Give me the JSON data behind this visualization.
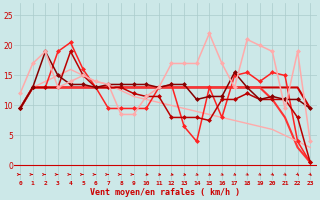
{
  "xlabel": "Vent moyen/en rafales ( km/h )",
  "background_color": "#cce8e8",
  "grid_color": "#aacccc",
  "xlim": [
    -0.5,
    23.5
  ],
  "ylim": [
    -2.5,
    27
  ],
  "yticks": [
    0,
    5,
    10,
    15,
    20,
    25
  ],
  "x_ticks": [
    0,
    1,
    2,
    3,
    4,
    5,
    6,
    7,
    8,
    9,
    10,
    11,
    12,
    13,
    14,
    15,
    16,
    17,
    18,
    19,
    20,
    21,
    22,
    23
  ],
  "lines": [
    {
      "x": [
        0,
        1,
        2,
        3,
        4,
        5,
        6,
        7,
        8,
        9,
        10,
        11,
        12,
        13,
        14,
        15,
        16,
        17,
        18,
        19,
        20,
        21,
        22,
        23
      ],
      "y": [
        9.5,
        13,
        13,
        13,
        13,
        13,
        13,
        13,
        13,
        13,
        13,
        13,
        13,
        13,
        13,
        13,
        13,
        13,
        13,
        13,
        13,
        13,
        13,
        9.5
      ],
      "color": "#cc0000",
      "lw": 1.5,
      "marker": false
    },
    {
      "x": [
        0,
        1,
        2,
        3,
        4,
        5,
        6,
        7,
        8,
        9,
        10,
        11,
        12,
        13,
        14,
        15,
        16,
        17,
        18,
        19,
        20,
        21,
        22,
        23
      ],
      "y": [
        9.5,
        13,
        13,
        13,
        13,
        13,
        13,
        13,
        13,
        13,
        13,
        13,
        13,
        13,
        13,
        13,
        13,
        13,
        13,
        13,
        11,
        8,
        3,
        0.5
      ],
      "color": "#ff3333",
      "lw": 1.5,
      "marker": false
    },
    {
      "x": [
        0,
        1,
        2,
        3,
        4,
        5,
        6,
        7,
        8,
        9,
        10,
        11,
        12,
        13,
        14,
        15,
        16,
        17,
        18,
        19,
        20,
        21,
        22,
        23
      ],
      "y": [
        9.5,
        13,
        14,
        15,
        16,
        15,
        14,
        13.5,
        12.5,
        11.5,
        11,
        10.5,
        10,
        9.5,
        9,
        8.5,
        8,
        7.5,
        7,
        6.5,
        6,
        5,
        4,
        3
      ],
      "color": "#ffaaaa",
      "lw": 1.0,
      "marker": false
    },
    {
      "x": [
        0,
        1,
        2,
        3,
        4,
        5,
        6,
        7,
        8,
        9,
        10,
        11,
        12,
        13,
        14,
        15,
        16,
        17,
        18,
        19,
        20,
        21,
        22,
        23
      ],
      "y": [
        9.5,
        13,
        13,
        19,
        20.5,
        16,
        13,
        9.5,
        9.5,
        9.5,
        9.5,
        13,
        13.5,
        6.5,
        4,
        13,
        8,
        15,
        15.5,
        14,
        15.5,
        15,
        4,
        0.5
      ],
      "color": "#ff2222",
      "lw": 1.1,
      "marker": "D",
      "ms": 2.5
    },
    {
      "x": [
        0,
        1,
        2,
        3,
        4,
        5,
        6,
        7,
        8,
        9,
        10,
        11,
        12,
        13,
        14,
        15,
        16,
        17,
        18,
        19,
        20,
        21,
        22,
        23
      ],
      "y": [
        9.5,
        13,
        13,
        13,
        19,
        15,
        13,
        13,
        13,
        12,
        11.5,
        11.5,
        8,
        8,
        8,
        7.5,
        11,
        11,
        12,
        11,
        11,
        11,
        8,
        0.5
      ],
      "color": "#bb0000",
      "lw": 1.1,
      "marker": "D",
      "ms": 2.5
    },
    {
      "x": [
        0,
        1,
        2,
        3,
        4,
        5,
        6,
        7,
        8,
        9,
        10,
        11,
        12,
        13,
        14,
        15,
        16,
        17,
        18,
        19,
        20,
        21,
        22,
        23
      ],
      "y": [
        9.5,
        13,
        19,
        15,
        13.5,
        13.5,
        13,
        13.5,
        13.5,
        13.5,
        13.5,
        13,
        13.5,
        13.5,
        11,
        11.5,
        11.5,
        15.5,
        13,
        11,
        11.5,
        11,
        11,
        9.5
      ],
      "color": "#880000",
      "lw": 1.1,
      "marker": "D",
      "ms": 2.5
    },
    {
      "x": [
        0,
        1,
        2,
        3,
        4,
        5,
        6,
        7,
        8,
        9,
        10,
        11,
        12,
        13,
        14,
        15,
        16,
        17,
        18,
        19,
        20,
        21,
        22,
        23
      ],
      "y": [
        12,
        17,
        19,
        13,
        14,
        15,
        14,
        13.5,
        8.5,
        8.5,
        11.5,
        13,
        17,
        17,
        17,
        22,
        17,
        13,
        21,
        20,
        19,
        9.5,
        19,
        4
      ],
      "color": "#ffaaaa",
      "lw": 1.1,
      "marker": "D",
      "ms": 2.5
    }
  ],
  "arrows": {
    "y": -1.5,
    "color": "#cc0000",
    "angles_deg": [
      0,
      0,
      0,
      0,
      0,
      0,
      0,
      0,
      0,
      0,
      -20,
      -20,
      -30,
      -30,
      -40,
      -40,
      -45,
      -45,
      -50,
      -50,
      -55,
      -55,
      -60,
      -60
    ]
  }
}
